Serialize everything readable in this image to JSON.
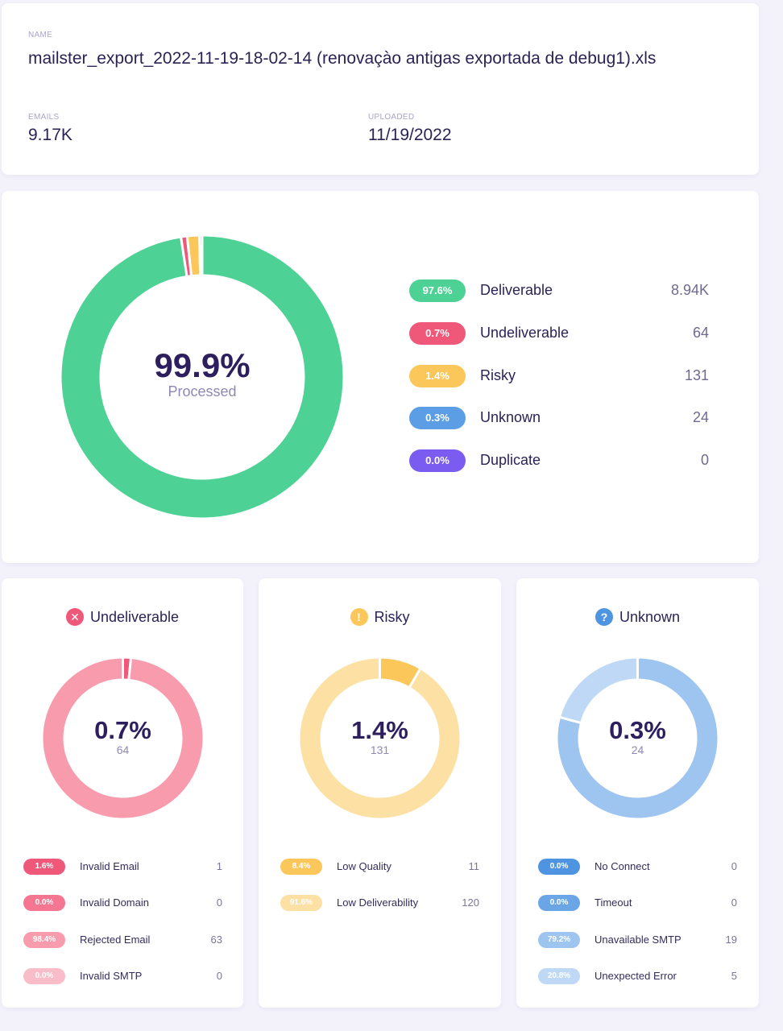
{
  "file": {
    "name_label": "NAME",
    "name": "mailster_export_2022-11-19-18-02-14 (renovaçào antigas exportada de debug1).xls",
    "emails_label": "EMAILS",
    "emails": "9.17K",
    "uploaded_label": "UPLOADED",
    "uploaded": "11/19/2022"
  },
  "summary": {
    "center_value": "99.9%",
    "center_label": "Processed",
    "items": [
      {
        "pct": "97.6%",
        "label": "Deliverable",
        "count": "8.94K",
        "color": "#4dd194"
      },
      {
        "pct": "0.7%",
        "label": "Undeliverable",
        "count": "64",
        "color": "#f0587a"
      },
      {
        "pct": "1.4%",
        "label": "Risky",
        "count": "131",
        "color": "#fbc75a"
      },
      {
        "pct": "0.3%",
        "label": "Unknown",
        "count": "24",
        "color": "#5b9ee6"
      },
      {
        "pct": "0.0%",
        "label": "Duplicate",
        "count": "0",
        "color": "#7b5cf0"
      }
    ]
  },
  "breakdowns": {
    "undeliverable": {
      "title": "Undeliverable",
      "icon": "x-circle-icon",
      "icon_glyph": "✕",
      "icon_color": "#f0587a",
      "center_value": "0.7%",
      "center_count": "64",
      "items": [
        {
          "pct": "1.6%",
          "label": "Invalid Email",
          "count": "1",
          "color": "#f0587a"
        },
        {
          "pct": "0.0%",
          "label": "Invalid Domain",
          "count": "0",
          "color": "#f47690"
        },
        {
          "pct": "98.4%",
          "label": "Rejected Email",
          "count": "63",
          "color": "#f79bad"
        },
        {
          "pct": "0.0%",
          "label": "Invalid SMTP",
          "count": "0",
          "color": "#f9bdc9"
        }
      ]
    },
    "risky": {
      "title": "Risky",
      "icon": "exclamation-circle-icon",
      "icon_glyph": "!",
      "icon_color": "#fbc75a",
      "center_value": "1.4%",
      "center_count": "131",
      "items": [
        {
          "pct": "8.4%",
          "label": "Low Quality",
          "count": "11",
          "color": "#fbc75a"
        },
        {
          "pct": "91.6%",
          "label": "Low Deliverability",
          "count": "120",
          "color": "#fde0a3"
        }
      ]
    },
    "unknown": {
      "title": "Unknown",
      "icon": "question-circle-icon",
      "icon_glyph": "?",
      "icon_color": "#4e94e0",
      "center_value": "0.3%",
      "center_count": "24",
      "items": [
        {
          "pct": "0.0%",
          "label": "No Connect",
          "count": "0",
          "color": "#4e94e0"
        },
        {
          "pct": "0.0%",
          "label": "Timeout",
          "count": "0",
          "color": "#6aa6e6"
        },
        {
          "pct": "79.2%",
          "label": "Unavailable SMTP",
          "count": "19",
          "color": "#9dc5ef"
        },
        {
          "pct": "20.8%",
          "label": "Unexpected Error",
          "count": "5",
          "color": "#bfd8f5"
        }
      ]
    }
  },
  "chart_data": [
    {
      "type": "pie",
      "title": "Processed",
      "center_text": "99.9%",
      "categories": [
        "Deliverable",
        "Undeliverable",
        "Risky",
        "Unknown",
        "Duplicate"
      ],
      "values": [
        97.6,
        0.7,
        1.4,
        0.3,
        0.0
      ],
      "counts": [
        "8.94K",
        "64",
        "131",
        "24",
        "0"
      ],
      "colors": [
        "#4dd194",
        "#f0587a",
        "#fbc75a",
        "#5b9ee6",
        "#7b5cf0"
      ],
      "legend": "right"
    },
    {
      "type": "pie",
      "title": "Undeliverable",
      "center_text": "0.7%",
      "categories": [
        "Invalid Email",
        "Invalid Domain",
        "Rejected Email",
        "Invalid SMTP"
      ],
      "values": [
        1.6,
        0.0,
        98.4,
        0.0
      ],
      "counts": [
        1,
        0,
        63,
        0
      ],
      "colors": [
        "#f0587a",
        "#f47690",
        "#f79bad",
        "#f9bdc9"
      ],
      "legend": "bottom"
    },
    {
      "type": "pie",
      "title": "Risky",
      "center_text": "1.4%",
      "categories": [
        "Low Quality",
        "Low Deliverability"
      ],
      "values": [
        8.4,
        91.6
      ],
      "counts": [
        11,
        120
      ],
      "colors": [
        "#fbc75a",
        "#fde0a3"
      ],
      "legend": "bottom"
    },
    {
      "type": "pie",
      "title": "Unknown",
      "center_text": "0.3%",
      "categories": [
        "No Connect",
        "Timeout",
        "Unavailable SMTP",
        "Unexpected Error"
      ],
      "values": [
        0.0,
        0.0,
        79.2,
        20.8
      ],
      "counts": [
        0,
        0,
        19,
        5
      ],
      "colors": [
        "#4e94e0",
        "#6aa6e6",
        "#9dc5ef",
        "#bfd8f5"
      ],
      "legend": "bottom"
    }
  ]
}
